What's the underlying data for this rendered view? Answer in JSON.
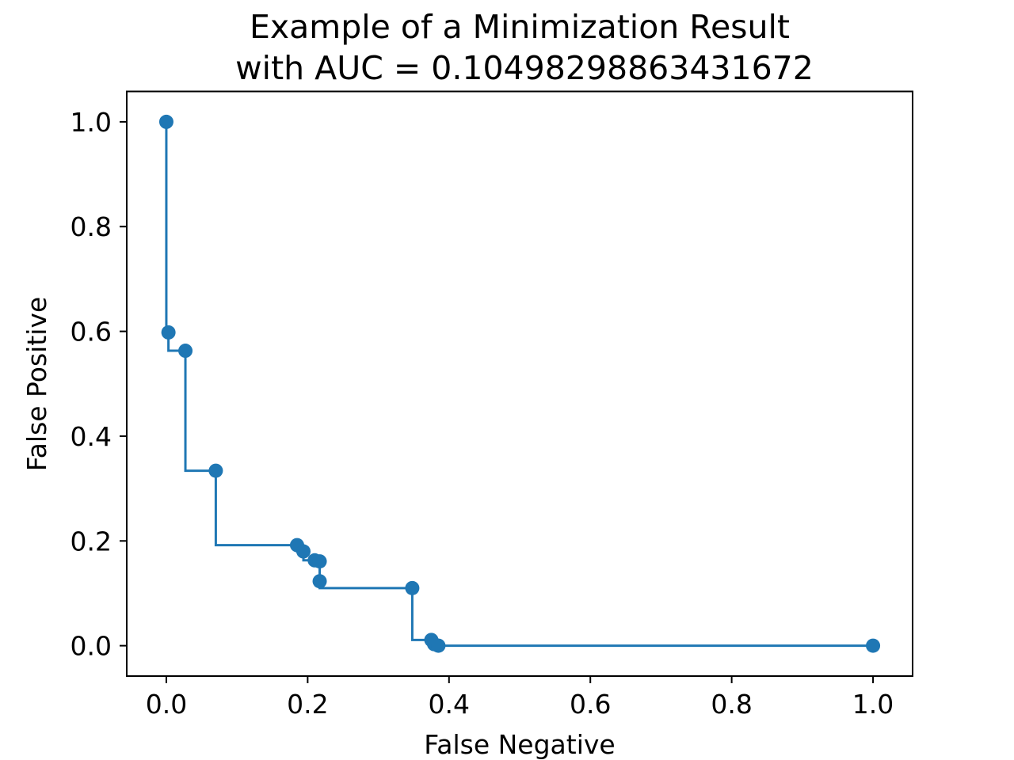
{
  "chart_data": {
    "type": "line",
    "title": "Example of a Minimization Result",
    "subtitle": "with AUC = 0.10498298863431672",
    "xlabel": "False Negative",
    "ylabel": "False Positive",
    "xlim": [
      -0.056,
      1.056
    ],
    "ylim": [
      -0.058,
      1.058
    ],
    "xticks": [
      0.0,
      0.2,
      0.4,
      0.6,
      0.8,
      1.0
    ],
    "xtick_labels": [
      "0.0",
      "0.2",
      "0.4",
      "0.6",
      "0.8",
      "1.0"
    ],
    "yticks": [
      0.0,
      0.2,
      0.4,
      0.6,
      0.8,
      1.0
    ],
    "ytick_labels": [
      "0.0",
      "0.2",
      "0.4",
      "0.6",
      "0.8",
      "1.0"
    ],
    "grid": false,
    "legend": "none",
    "step_style": "post",
    "series": [
      {
        "color": "#1f77b4",
        "marker": "circle",
        "points": [
          {
            "x": 0.0,
            "y": 1.0
          },
          {
            "x": 0.003,
            "y": 0.598
          },
          {
            "x": 0.027,
            "y": 0.563
          },
          {
            "x": 0.07,
            "y": 0.334
          },
          {
            "x": 0.185,
            "y": 0.192
          },
          {
            "x": 0.194,
            "y": 0.18
          },
          {
            "x": 0.21,
            "y": 0.163
          },
          {
            "x": 0.217,
            "y": 0.161
          },
          {
            "x": 0.217,
            "y": 0.123
          },
          {
            "x": 0.348,
            "y": 0.11
          },
          {
            "x": 0.375,
            "y": 0.011
          },
          {
            "x": 0.379,
            "y": 0.003
          },
          {
            "x": 0.385,
            "y": 0.0
          },
          {
            "x": 1.0,
            "y": 0.0
          }
        ]
      }
    ]
  }
}
